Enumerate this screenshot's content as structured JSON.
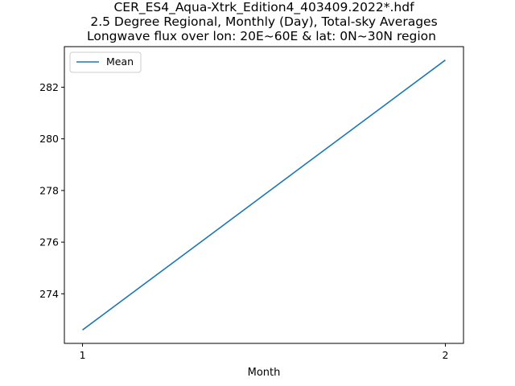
{
  "chart_data": {
    "type": "line",
    "title": [
      "CER_ES4_Aqua-Xtrk_Edition4_403409.2022*.hdf",
      "2.5 Degree Regional, Monthly (Day), Total-sky Averages",
      "Longwave flux over lon: 20E~60E & lat: 0N~30N region"
    ],
    "xlabel": "Month",
    "ylabel": "",
    "x": [
      1,
      2
    ],
    "series": [
      {
        "name": "Mean",
        "values": [
          272.6,
          283.05
        ],
        "color": "#1f77b4"
      }
    ],
    "xticks": [
      1,
      2
    ],
    "yticks": [
      274,
      276,
      278,
      280,
      282
    ],
    "xlim": [
      0.95,
      2.05
    ],
    "ylim": [
      272.08,
      283.57
    ],
    "grid": false,
    "legend_position": "upper-left"
  }
}
